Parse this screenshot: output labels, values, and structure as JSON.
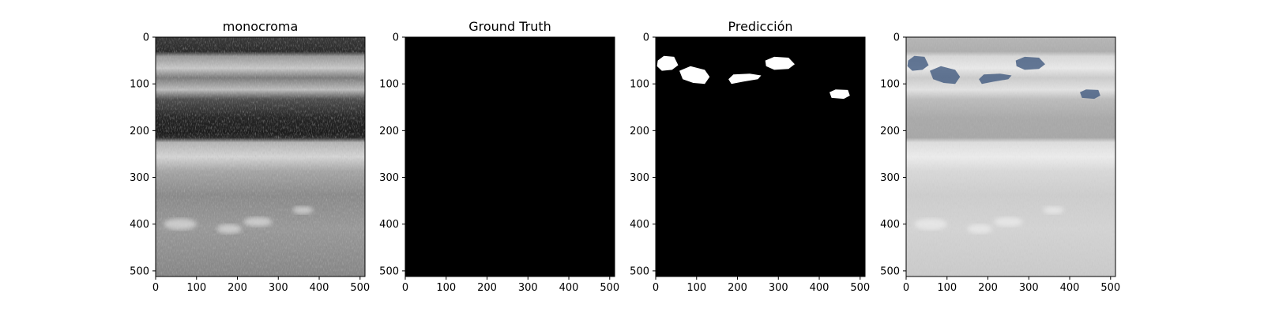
{
  "figure": {
    "background": "#ffffff",
    "panels": [
      {
        "key": "original",
        "title": "monocroma",
        "content": "ultrasound-grayscale"
      },
      {
        "key": "ground_truth",
        "title": "Ground Truth",
        "content": "black-mask"
      },
      {
        "key": "prediction",
        "title": "Predicción",
        "content": "white-blob-mask"
      },
      {
        "key": "overlay",
        "title": "",
        "content": "ultrasound-with-blue-overlay"
      }
    ],
    "x_ticks": [
      "0",
      "100",
      "200",
      "300",
      "400",
      "500"
    ],
    "y_ticks": [
      "0",
      "100",
      "200",
      "300",
      "400",
      "500"
    ],
    "image_extent": [
      0,
      512
    ],
    "colors": {
      "mask_bg": "#000000",
      "mask_fg": "#ffffff",
      "overlay_blue": "#4a6285"
    }
  }
}
